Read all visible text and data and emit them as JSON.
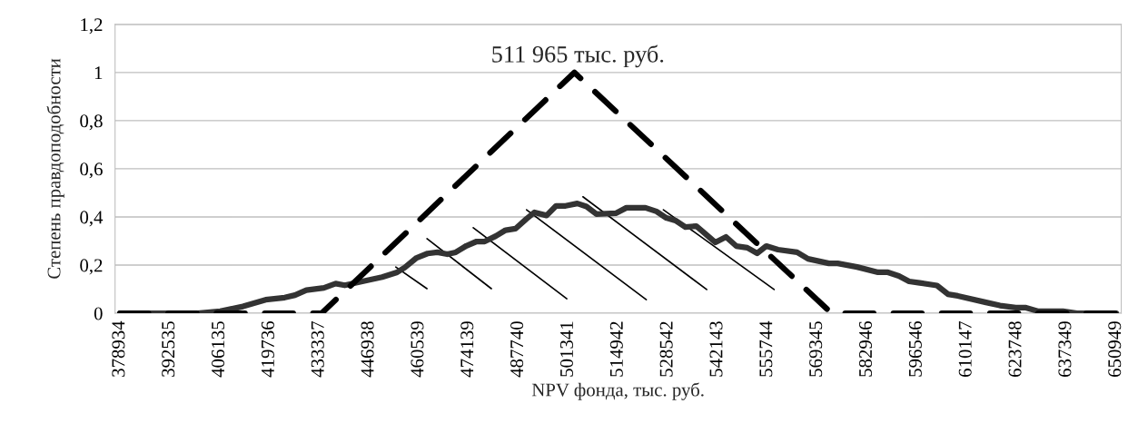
{
  "chart_data": {
    "type": "line",
    "xlabel": "NPV фонда, тыс. руб.",
    "ylabel": "Степень правдоподобности",
    "annotations": [
      "511 965 тыс. руб."
    ],
    "xlim": [
      377574,
      652309
    ],
    "xticks": [
      378934,
      392535,
      406135,
      419736,
      433337,
      446938,
      460539,
      474139,
      487740,
      501341,
      514942,
      528542,
      542143,
      555744,
      569345,
      582946,
      596546,
      610147,
      623748,
      637349,
      650949
    ],
    "ylim": [
      0,
      1.2
    ],
    "yticks": [
      0,
      {
        "value": 0.2,
        "label": "0,2"
      },
      {
        "value": 0.4,
        "label": "0,4"
      },
      {
        "value": 0.6,
        "label": "0,6"
      },
      {
        "value": 0.8,
        "label": "0,8"
      },
      1,
      {
        "value": 1.2,
        "label": "1,2"
      }
    ],
    "grid": "y",
    "marker": "none",
    "series": [
      {
        "color": "#333333",
        "line_style": "solid",
        "x": [
          378934,
          400100,
          406300,
          412500,
          418700,
          423900,
          426700,
          429800,
          434600,
          437800,
          440300,
          446200,
          450500,
          454600,
          456700,
          459900,
          462900,
          465600,
          468300,
          470600,
          473500,
          476300,
          478500,
          481500,
          484200,
          486900,
          489900,
          492100,
          495400,
          498000,
          500600,
          503800,
          506300,
          509000,
          514300,
          517200,
          522400,
          525400,
          528100,
          530600,
          533300,
          536300,
          541500,
          544400,
          547200,
          550200,
          552900,
          555400,
          558600,
          563800,
          566800,
          572500,
          574900,
          580200,
          585900,
          588600,
          591600,
          594400,
          597300,
          602000,
          605000,
          607700,
          615400,
          619200,
          623500,
          626300,
          629700,
          636400,
          640200,
          650949
        ],
        "values": [
          0,
          0,
          0.008,
          0.028,
          0.056,
          0.065,
          0.075,
          0.096,
          0.105,
          0.123,
          0.116,
          0.136,
          0.15,
          0.17,
          0.19,
          0.23,
          0.248,
          0.253,
          0.245,
          0.253,
          0.28,
          0.298,
          0.298,
          0.32,
          0.345,
          0.351,
          0.392,
          0.419,
          0.406,
          0.446,
          0.446,
          0.456,
          0.443,
          0.412,
          0.415,
          0.438,
          0.438,
          0.423,
          0.396,
          0.385,
          0.358,
          0.362,
          0.294,
          0.317,
          0.279,
          0.272,
          0.249,
          0.279,
          0.264,
          0.253,
          0.226,
          0.207,
          0.207,
          0.192,
          0.17,
          0.17,
          0.155,
          0.132,
          0.126,
          0.115,
          0.079,
          0.072,
          0.045,
          0.032,
          0.023,
          0.023,
          0.008,
          0.008,
          0,
          0
        ]
      },
      {
        "color": "#000000",
        "line_style": "dashed",
        "x": [
          378934,
          434000,
          503000,
          573200,
          650949
        ],
        "values": [
          0,
          0,
          1,
          0,
          0
        ]
      }
    ]
  }
}
